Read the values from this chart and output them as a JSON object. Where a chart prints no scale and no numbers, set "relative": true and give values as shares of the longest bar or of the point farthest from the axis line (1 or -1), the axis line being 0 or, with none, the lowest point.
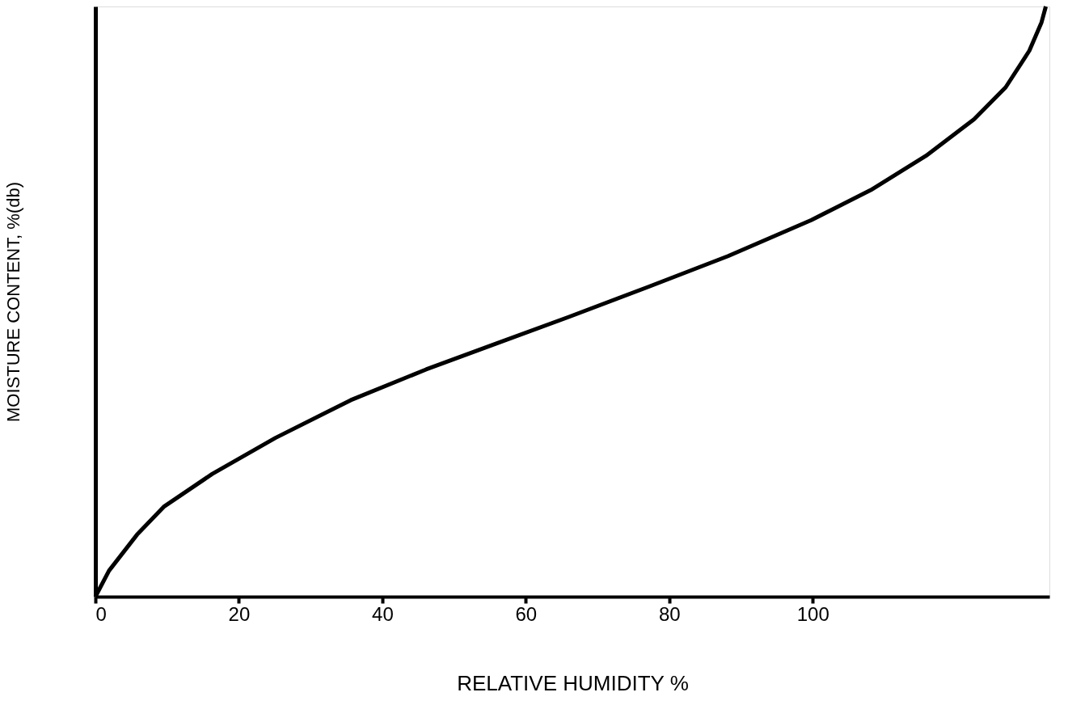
{
  "chart_data": {
    "type": "line",
    "xlabel": "RELATIVE HUMIDITY %",
    "ylabel": "MOISTURE CONTENT, %(db)",
    "relative": true,
    "x": [
      0,
      1.9,
      5.8,
      9.6,
      16.3,
      25.1,
      35.6,
      46.1,
      55.9,
      66.0,
      77.1,
      88.2,
      99.8,
      108.1,
      115.8,
      122.5,
      126.9,
      130.2,
      131.9,
      132.5
    ],
    "series": [
      {
        "color": "#000000",
        "values": [
          0,
          0.044,
          0.105,
          0.153,
          0.208,
          0.269,
          0.333,
          0.385,
          0.429,
          0.474,
          0.525,
          0.577,
          0.638,
          0.689,
          0.747,
          0.809,
          0.863,
          0.925,
          0.973,
          1.0
        ]
      }
    ],
    "xlim": [
      0,
      133
    ],
    "xticks": [
      0,
      20,
      40,
      60,
      80,
      100
    ],
    "grid": false,
    "legend": false,
    "marker": "none",
    "line_style": "solid",
    "tick_labels": "x"
  }
}
